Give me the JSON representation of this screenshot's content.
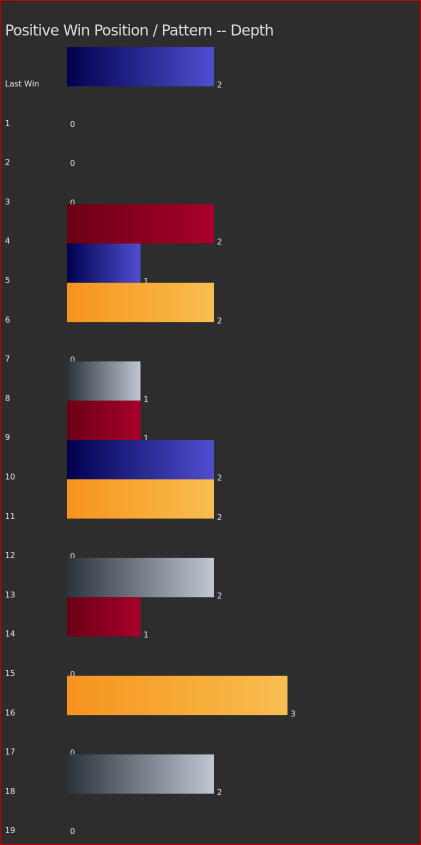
{
  "chart_data": {
    "type": "bar",
    "orientation": "horizontal",
    "title": "Positive Win Position / Pattern -- Depth",
    "categories": [
      "Last Win",
      "1",
      "2",
      "3",
      "4",
      "5",
      "6",
      "7",
      "8",
      "9",
      "10",
      "11",
      "12",
      "13",
      "14",
      "15",
      "16",
      "17",
      "18",
      "19"
    ],
    "values": [
      2,
      0,
      0,
      0,
      2,
      1,
      2,
      0,
      1,
      1,
      2,
      2,
      0,
      2,
      1,
      0,
      3,
      0,
      2,
      0
    ],
    "colors": [
      [
        "#00004f",
        "#4f4fcf"
      ],
      null,
      null,
      null,
      [
        "#6b0015",
        "#a8002c"
      ],
      [
        "#00004f",
        "#4f4fcf"
      ],
      [
        "#f7931e",
        "#f7be4f"
      ],
      null,
      [
        "#2a333b",
        "#c0c6d2"
      ],
      [
        "#6b0015",
        "#a8002c"
      ],
      [
        "#00004f",
        "#4f4fcf"
      ],
      [
        "#f7931e",
        "#f7be4f"
      ],
      null,
      [
        "#2a333b",
        "#c0c6d2"
      ],
      [
        "#6b0015",
        "#a8002c"
      ],
      null,
      [
        "#f7931e",
        "#f7be4f"
      ],
      null,
      [
        "#2a333b",
        "#c0c6d2"
      ],
      null
    ]
  }
}
